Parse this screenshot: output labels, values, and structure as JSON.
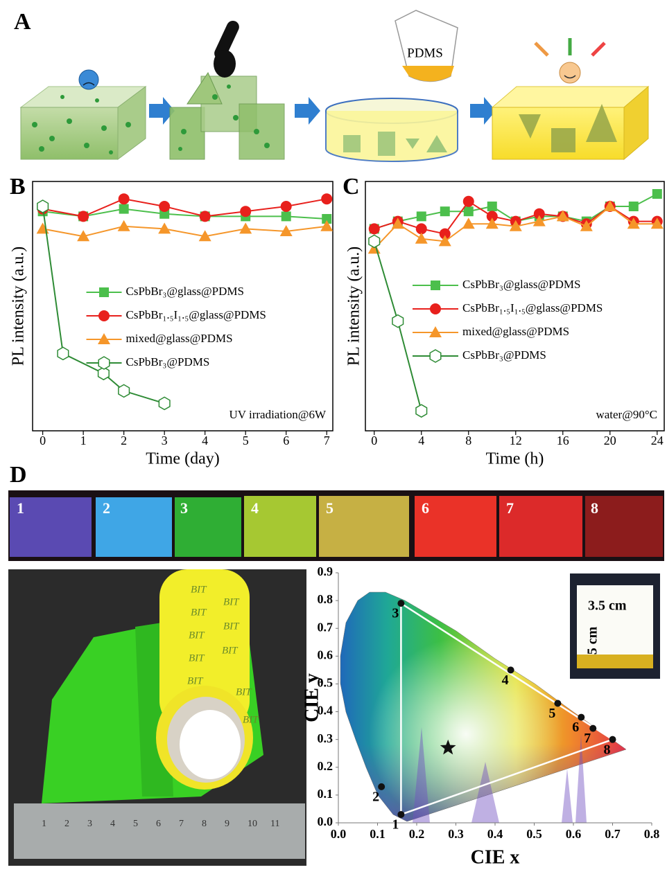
{
  "panel_labels": [
    "A",
    "B",
    "C",
    "D"
  ],
  "schematic": {
    "beaker_label": "PDMS"
  },
  "strip_labels": [
    "1",
    "2",
    "3",
    "4",
    "5",
    "6",
    "7",
    "8"
  ],
  "photo": {
    "tube_text": "BIT",
    "ruler_labels": [
      "1",
      "2",
      "3",
      "4",
      "5",
      "6",
      "7",
      "8",
      "9",
      "10",
      "11"
    ]
  },
  "inset": {
    "width_label": "3.5 cm",
    "height_label": "5 cm"
  },
  "chart_data": [
    {
      "type": "line",
      "x_label": "Time (day)",
      "y_label": "PL intensity (a.u.)",
      "annotation": "UV irradiation@6W",
      "x": [
        0,
        1,
        2,
        3,
        4,
        5,
        6,
        7
      ],
      "xlim": [
        -0.25,
        7.15
      ],
      "xticks": [
        0,
        1,
        2,
        3,
        4,
        5,
        6,
        7
      ],
      "ylim": [
        0,
        1
      ],
      "series": [
        {
          "name": "CsPbBr₃@glass@PDMS",
          "color": "#4cbf4c",
          "marker": "square",
          "values": [
            0.88,
            0.86,
            0.89,
            0.87,
            0.86,
            0.86,
            0.86,
            0.85
          ]
        },
        {
          "name": "CsPbBr₁.₅I₁.₅@glass@PDMS",
          "color": "#e8201c",
          "marker": "circle",
          "values": [
            0.89,
            0.86,
            0.93,
            0.9,
            0.86,
            0.88,
            0.9,
            0.93
          ]
        },
        {
          "name": "mixed@glass@PDMS",
          "color": "#f5962a",
          "marker": "triangle",
          "values": [
            0.81,
            0.78,
            0.82,
            0.81,
            0.78,
            0.81,
            0.8,
            0.82
          ]
        },
        {
          "name": "CsPbBr₃@PDMS",
          "color": "#2e8b35",
          "marker": "hexagon",
          "x": [
            0,
            0.5,
            1.5,
            2,
            3
          ],
          "values": [
            0.9,
            0.31,
            0.23,
            0.16,
            0.11
          ]
        }
      ]
    },
    {
      "type": "line",
      "x_label": "Time (h)",
      "y_label": "PL intensity (a.u.)",
      "annotation": "water@90°C",
      "x": [
        0,
        2,
        4,
        6,
        8,
        10,
        12,
        14,
        16,
        18,
        20,
        22,
        24
      ],
      "xlim": [
        -0.75,
        24.6
      ],
      "xticks": [
        0,
        4,
        8,
        12,
        16,
        20,
        24
      ],
      "ylim": [
        0,
        1
      ],
      "series": [
        {
          "name": "CsPbBr₃@glass@PDMS",
          "color": "#4cbf4c",
          "marker": "square",
          "values": [
            0.81,
            0.84,
            0.86,
            0.88,
            0.88,
            0.9,
            0.84,
            0.86,
            0.86,
            0.84,
            0.9,
            0.9,
            0.95
          ]
        },
        {
          "name": "CsPbBr₁.₅I₁.₅@glass@PDMS",
          "color": "#e8201c",
          "marker": "circle",
          "values": [
            0.81,
            0.84,
            0.81,
            0.79,
            0.92,
            0.86,
            0.84,
            0.87,
            0.86,
            0.83,
            0.9,
            0.84,
            0.84
          ]
        },
        {
          "name": "mixed@glass@PDMS",
          "color": "#f5962a",
          "marker": "triangle",
          "values": [
            0.73,
            0.83,
            0.77,
            0.76,
            0.83,
            0.83,
            0.82,
            0.84,
            0.86,
            0.82,
            0.9,
            0.83,
            0.83
          ]
        },
        {
          "name": "CsPbBr₃@PDMS",
          "color": "#2e8b35",
          "marker": "hexagon",
          "x": [
            0,
            2,
            4
          ],
          "values": [
            0.76,
            0.44,
            0.08
          ]
        }
      ]
    },
    {
      "type": "scatter",
      "x_label": "CIE x",
      "y_label": "CIE y",
      "xlim": [
        0,
        0.8
      ],
      "ylim": [
        0,
        0.9
      ],
      "xticks": [
        {
          "value": 0,
          "label": "0.0"
        },
        0.1,
        0.2,
        0.3,
        0.4,
        0.5,
        0.6,
        0.7,
        0.8
      ],
      "yticks": [
        {
          "value": 0,
          "label": "0.0"
        },
        0.1,
        0.2,
        0.3,
        0.4,
        0.5,
        0.6,
        0.7,
        0.8,
        0.9
      ],
      "color": "#111111",
      "point_labels": [
        "1",
        "2",
        "3",
        "4",
        "5",
        "6",
        "7",
        "8"
      ],
      "x": [
        0.16,
        0.11,
        0.16,
        0.44,
        0.56,
        0.62,
        0.65,
        0.7
      ],
      "values": [
        0.03,
        0.13,
        0.79,
        0.55,
        0.43,
        0.38,
        0.34,
        0.3
      ],
      "star": {
        "x": 0.28,
        "y": 0.27
      }
    }
  ]
}
